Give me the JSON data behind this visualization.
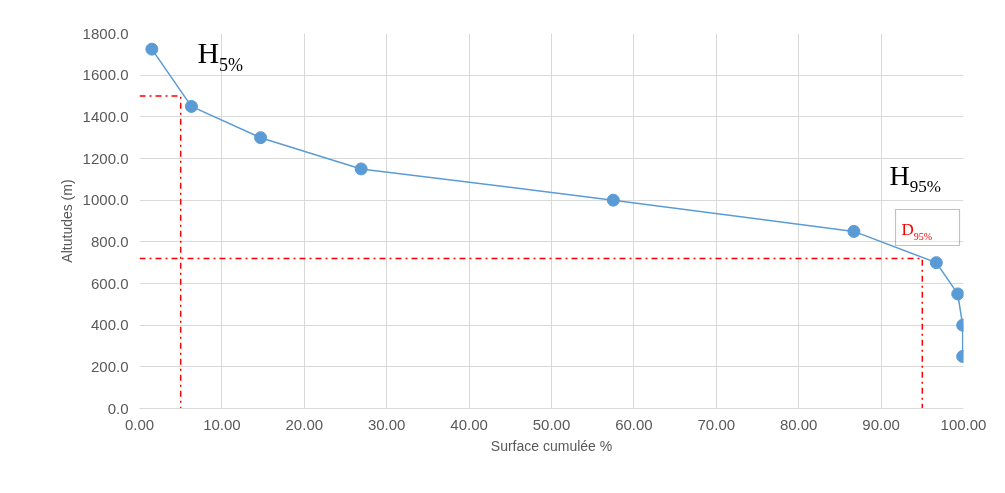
{
  "chart_data": {
    "type": "line",
    "xlabel": "Surface cumulée %",
    "ylabel": "Altutudes (m)",
    "x": [
      1.5,
      6.3,
      14.7,
      26.9,
      57.5,
      86.7,
      96.7,
      99.3,
      99.9,
      99.9
    ],
    "series": [
      {
        "color": "#5b9bd5",
        "values": [
          1725,
          1450,
          1300,
          1150,
          1000,
          850,
          700,
          550,
          400,
          250
        ]
      },
      {
        "x": [
          0,
          5,
          5
        ],
        "values": [
          1500,
          1500,
          0
        ],
        "color": "#ff0000",
        "line_style": "dashdot",
        "marker": "none"
      },
      {
        "x": [
          0,
          95,
          95
        ],
        "values": [
          720,
          720,
          0
        ],
        "color": "#ff0000",
        "line_style": "dashdot",
        "marker": "none"
      }
    ],
    "marker": "circle",
    "grid": true,
    "xlim": [
      0,
      100
    ],
    "xticks": [
      {
        "value": 0,
        "label": "0.00"
      },
      {
        "value": 10,
        "label": "10.00"
      },
      {
        "value": 20,
        "label": "20.00"
      },
      {
        "value": 30,
        "label": "30.00"
      },
      {
        "value": 40,
        "label": "40.00"
      },
      {
        "value": 50,
        "label": "50.00"
      },
      {
        "value": 60,
        "label": "60.00"
      },
      {
        "value": 70,
        "label": "70.00"
      },
      {
        "value": 80,
        "label": "80.00"
      },
      {
        "value": 90,
        "label": "90.00"
      },
      {
        "value": 100,
        "label": "100.00"
      }
    ],
    "ylim": [
      0,
      1800
    ],
    "yticks": [
      {
        "value": 0,
        "label": "0.0"
      },
      {
        "value": 200,
        "label": "200.0"
      },
      {
        "value": 400,
        "label": "400.0"
      },
      {
        "value": 600,
        "label": "600.0"
      },
      {
        "value": 800,
        "label": "800.0"
      },
      {
        "value": 1000,
        "label": "1000.0"
      },
      {
        "value": 1200,
        "label": "1200.0"
      },
      {
        "value": 1400,
        "label": "1400.0"
      },
      {
        "value": 1600,
        "label": "1600.0"
      },
      {
        "value": 1800,
        "label": "1800.0"
      }
    ],
    "annotations": [
      "H$_{5%}$",
      "H$_{95%}$",
      "D$_{95%}$"
    ]
  }
}
